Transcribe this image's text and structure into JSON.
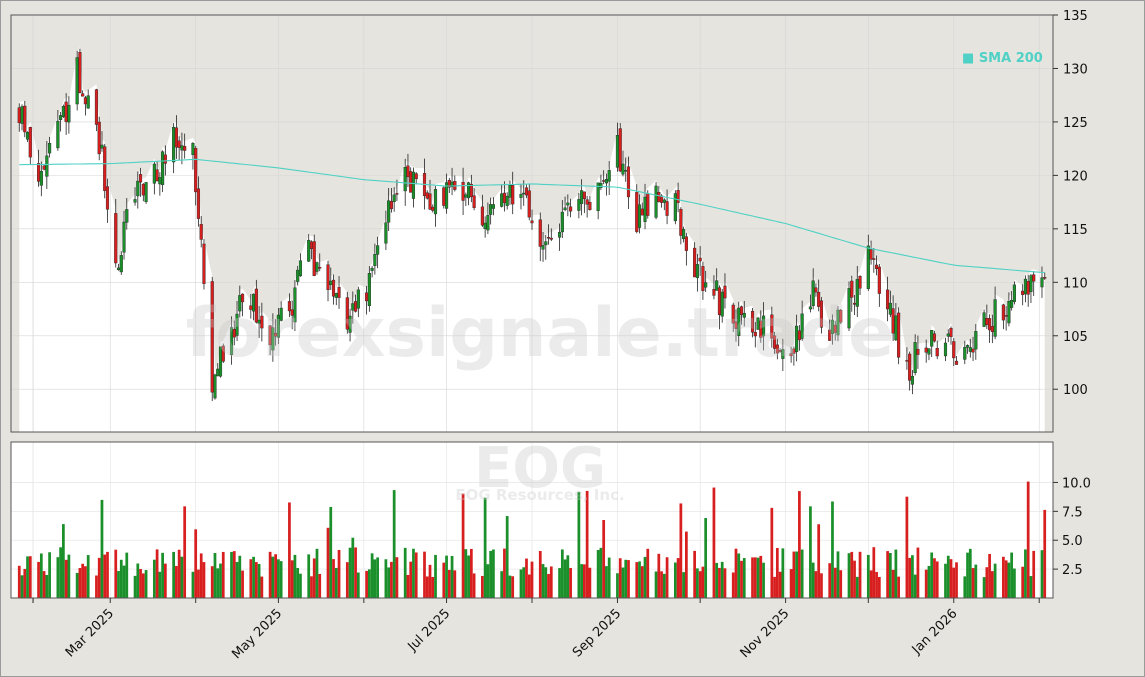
{
  "chart_data": {
    "type": "candlestick",
    "ticker": "EOG",
    "company": "EOG Resources, Inc.",
    "watermark": "forexsignale.trade",
    "legend": {
      "label": "SMA 200",
      "color": "#4fd1c5",
      "placement": "top-right"
    },
    "price_axis": {
      "min": 96,
      "max": 135,
      "ticks": [
        "135",
        "130",
        "125",
        "120",
        "115",
        "110",
        "105",
        "100"
      ]
    },
    "volume_axis": {
      "min": 0,
      "max": 13.5,
      "ticks": [
        "10.0",
        "7.5",
        "5.0",
        "2.5"
      ]
    },
    "x_ticks": [
      "Mar 2025",
      "May 2025",
      "Jul 2025",
      "Sep 2025",
      "Nov 2025",
      "Jan 2026"
    ],
    "colors": {
      "up": "#1a8f2a",
      "down": "#d81f1f",
      "sma": "#4fd1c5",
      "background": "#e6e4de",
      "plot_fill": "#ffffff"
    },
    "price_anchors": [
      [
        "2025-01-27",
        126
      ],
      [
        "2025-02-03",
        120
      ],
      [
        "2025-02-10",
        124
      ],
      [
        "2025-02-17",
        130
      ],
      [
        "2025-02-24",
        125
      ],
      [
        "2025-03-03",
        112
      ],
      [
        "2025-03-10",
        118
      ],
      [
        "2025-03-17",
        120
      ],
      [
        "2025-03-24",
        124
      ],
      [
        "2025-03-31",
        123
      ],
      [
        "2025-04-07",
        100
      ],
      [
        "2025-04-14",
        106
      ],
      [
        "2025-04-21",
        109
      ],
      [
        "2025-04-28",
        105
      ],
      [
        "2025-05-05",
        107
      ],
      [
        "2025-05-12",
        113
      ],
      [
        "2025-05-19",
        110
      ],
      [
        "2025-05-26",
        107
      ],
      [
        "2025-06-02",
        109
      ],
      [
        "2025-06-09",
        117
      ],
      [
        "2025-06-16",
        121
      ],
      [
        "2025-06-23",
        117
      ],
      [
        "2025-06-30",
        118
      ],
      [
        "2025-07-07",
        119
      ],
      [
        "2025-07-14",
        116
      ],
      [
        "2025-07-21",
        117
      ],
      [
        "2025-07-28",
        119
      ],
      [
        "2025-08-04",
        114
      ],
      [
        "2025-08-11",
        116
      ],
      [
        "2025-08-18",
        117
      ],
      [
        "2025-08-25",
        119
      ],
      [
        "2025-09-01",
        123
      ],
      [
        "2025-09-08",
        116
      ],
      [
        "2025-09-15",
        118
      ],
      [
        "2025-09-22",
        117
      ],
      [
        "2025-09-29",
        111
      ],
      [
        "2025-10-06",
        109
      ],
      [
        "2025-10-13",
        107
      ],
      [
        "2025-10-20",
        106
      ],
      [
        "2025-10-27",
        105
      ],
      [
        "2025-11-03",
        104
      ],
      [
        "2025-11-10",
        109
      ],
      [
        "2025-11-17",
        106
      ],
      [
        "2025-11-24",
        108
      ],
      [
        "2025-12-01",
        112
      ],
      [
        "2025-12-08",
        108
      ],
      [
        "2025-12-15",
        102
      ],
      [
        "2025-12-22",
        104
      ],
      [
        "2025-12-29",
        105
      ],
      [
        "2026-01-05",
        103
      ],
      [
        "2026-01-12",
        106
      ],
      [
        "2026-01-19",
        108
      ],
      [
        "2026-01-26",
        109
      ],
      [
        "2026-02-02",
        111
      ]
    ],
    "sma_anchors": [
      [
        "2025-01-27",
        121.0
      ],
      [
        "2025-03-01",
        121.1
      ],
      [
        "2025-04-01",
        121.5
      ],
      [
        "2025-05-01",
        120.7
      ],
      [
        "2025-06-01",
        119.6
      ],
      [
        "2025-07-01",
        119.0
      ],
      [
        "2025-08-01",
        119.2
      ],
      [
        "2025-09-01",
        118.9
      ],
      [
        "2025-10-01",
        117.3
      ],
      [
        "2025-11-01",
        115.5
      ],
      [
        "2025-12-01",
        113.2
      ],
      [
        "2026-01-01",
        111.6
      ],
      [
        "2026-02-03",
        110.9
      ]
    ]
  }
}
